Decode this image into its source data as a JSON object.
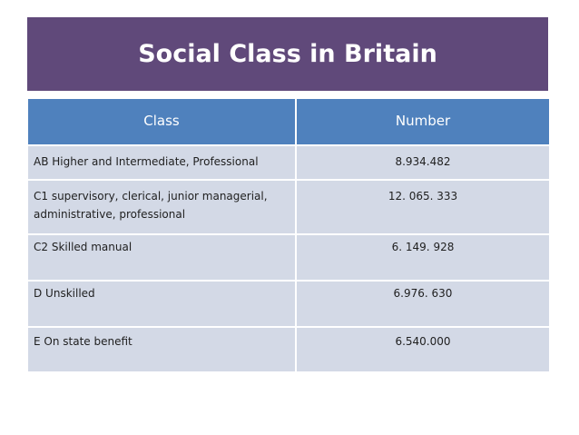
{
  "title": "Social Class in Britain",
  "table": {
    "headers": {
      "class": "Class",
      "number": "Number"
    },
    "rows": [
      {
        "class": "AB Higher and Intermediate, Professional",
        "number": "8.934.482"
      },
      {
        "class": "C1 supervisory, clerical, junior managerial, administrative, professional",
        "number": "12. 065. 333"
      },
      {
        "class": "C2 Skilled manual",
        "number": "6. 149. 928"
      },
      {
        "class": "D Unskilled",
        "number": "6.976. 630"
      },
      {
        "class": "E On state benefit",
        "number": "6.540.000"
      }
    ]
  },
  "colors": {
    "title_bar": "#60497a",
    "header_row": "#4f81bd",
    "data_row": "#d3d9e6"
  }
}
